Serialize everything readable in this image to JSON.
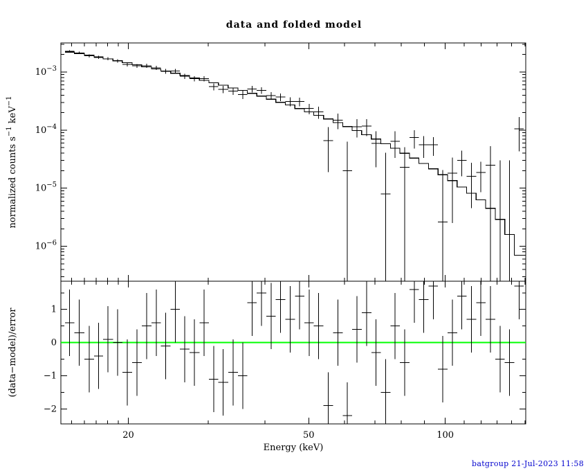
{
  "title": "data and folded model",
  "footer": {
    "stamp": "batgroup 21-Jul-2023 11:58"
  },
  "colors": {
    "frame": "#000000",
    "data": "#000000",
    "model": "#000000",
    "zero_line": "#00ff00",
    "stamp": "#0000cd",
    "background": "#ffffff"
  },
  "chart_data": {
    "type": "line",
    "title": "data and folded model",
    "xlabel": "Energy (keV)",
    "xscale": "log",
    "legend": "none",
    "grid": false,
    "panels": [
      {
        "name": "spectrum",
        "ylabel": "normalized counts s-1 keV-1",
        "ylabel_parts": [
          {
            "text": "normalized counts s"
          },
          {
            "text": "−1",
            "sup": true
          },
          {
            "text": " keV"
          },
          {
            "text": "−1",
            "sup": true
          }
        ],
        "xscale": "log",
        "yscale": "log",
        "xlim": [
          14.2,
          150.5
        ],
        "ylim": [
          2.5e-07,
          0.00316
        ],
        "y_tick_exponents": [
          -3,
          -4,
          -5,
          -6
        ],
        "x_major_ticks": [
          {
            "value": 20,
            "label": "20"
          },
          {
            "value": 50,
            "label": "50"
          },
          {
            "value": 100,
            "label": "100"
          }
        ],
        "x_minor_ticks": [
          15,
          16,
          17,
          18,
          19,
          30,
          40,
          60,
          70,
          80,
          90,
          110,
          120,
          130,
          140,
          150
        ],
        "bin_edges_keV": [
          14.5,
          15.2,
          16.0,
          16.8,
          17.6,
          18.5,
          19.4,
          20.4,
          21.4,
          22.5,
          23.6,
          24.8,
          26.0,
          27.3,
          28.7,
          30.1,
          31.6,
          33.2,
          34.9,
          36.6,
          38.4,
          40.3,
          42.3,
          44.4,
          46.6,
          48.9,
          51.3,
          53.9,
          56.6,
          59.4,
          62.3,
          65.4,
          68.7,
          72.1,
          75.7,
          79.4,
          83.4,
          87.5,
          91.9,
          96.4,
          101.2,
          106.2,
          111.5,
          117.0,
          122.8,
          128.9,
          135.3,
          142.0,
          149.0
        ],
        "model_counts": [
          0.0022,
          0.00208,
          0.00194,
          0.00181,
          0.00168,
          0.00156,
          0.00144,
          0.00133,
          0.00123,
          0.00113,
          0.00104,
          0.00095,
          0.00087,
          0.00079,
          0.00072,
          0.00065,
          0.00059,
          0.00053,
          0.00048,
          0.00043,
          0.000385,
          0.00034,
          0.0003,
          0.00027,
          0.000235,
          0.000205,
          0.00018,
          0.000155,
          0.000134,
          0.000115,
          9.8e-05,
          8.3e-05,
          7e-05,
          5.8e-05,
          4.85e-05,
          4e-05,
          3.3e-05,
          2.65e-05,
          2.15e-05,
          1.7e-05,
          1.35e-05,
          1.05e-05,
          8.2e-06,
          6.3e-06,
          4.5e-06,
          2.9e-06,
          1.6e-06,
          7e-07
        ],
        "data_counts": [
          0.00227,
          0.00213,
          0.00189,
          0.00178,
          0.00169,
          0.00156,
          0.00135,
          0.00127,
          0.00128,
          0.00118,
          0.00103,
          0.00104,
          0.00085,
          0.00077,
          0.00077,
          0.00056,
          0.000505,
          0.00047,
          0.00041,
          0.00051,
          0.00048,
          0.00039,
          0.00037,
          0.00031,
          0.00031,
          0.000235,
          0.000205,
          6.6e-05,
          0.000147,
          2e-05,
          0.000114,
          0.000117,
          5.9e-05,
          8e-06,
          6.4e-05,
          2.3e-05,
          7.4e-05,
          5.6e-05,
          5.6e-05,
          2.6e-06,
          1.8e-05,
          3e-05,
          1.6e-05,
          1.85e-05,
          2.5e-05,
          -3e-05,
          -5e-05,
          0.000105
        ],
        "data_err": [
          0.00011,
          0.000105,
          0.000117,
          0.000109,
          0.0001,
          0.000109,
          0.0001,
          9.3e-05,
          9.8e-05,
          9e-05,
          9.4e-05,
          8.6e-05,
          8.7e-05,
          7.9e-05,
          7.9e-05,
          7.8e-05,
          7.1e-05,
          6.9e-05,
          6.7e-05,
          6.5e-05,
          6.2e-05,
          5.8e-05,
          5.4e-05,
          5.4e-05,
          5.2e-05,
          4.9e-05,
          4.9e-05,
          4.7e-05,
          4.4e-05,
          4.3e-05,
          4e-05,
          3.8e-05,
          3.6e-05,
          3.3e-05,
          3.1e-05,
          2.8e-05,
          2.6e-05,
          2.3e-05,
          2e-05,
          1.8e-05,
          1.55e-05,
          1.4e-05,
          1.15e-05,
          1e-05,
          2.8e-05,
          6e-05,
          8e-05,
          6.2e-05
        ]
      },
      {
        "name": "residuals",
        "ylabel": "(data−model)/error",
        "yscale": "linear",
        "ylim": [
          -2.45,
          1.85
        ],
        "y_major_ticks": [
          {
            "value": -2,
            "label": "−2"
          },
          {
            "value": -1,
            "label": "−1"
          },
          {
            "value": 0,
            "label": "0"
          },
          {
            "value": 1,
            "label": "1"
          }
        ],
        "y_minor_ticks": [
          -1.5,
          -0.5,
          0.5,
          1.5
        ],
        "residual_err": 1,
        "zero_line_color": "#00ff00",
        "residuals": [
          0.6,
          0.3,
          -0.5,
          -0.4,
          0.1,
          0.0,
          -0.9,
          -0.6,
          0.5,
          0.6,
          -0.1,
          1.0,
          -0.2,
          -0.3,
          0.6,
          -1.1,
          -1.2,
          -0.9,
          -1.0,
          1.2,
          1.5,
          0.8,
          1.3,
          0.7,
          1.4,
          0.6,
          0.5,
          -1.9,
          0.3,
          -2.2,
          0.4,
          0.9,
          -0.3,
          -1.5,
          0.5,
          -0.6,
          1.6,
          1.3,
          1.7,
          -0.8,
          0.3,
          1.4,
          0.7,
          1.2,
          0.7,
          -0.5,
          -0.6,
          1.7
        ]
      }
    ]
  }
}
